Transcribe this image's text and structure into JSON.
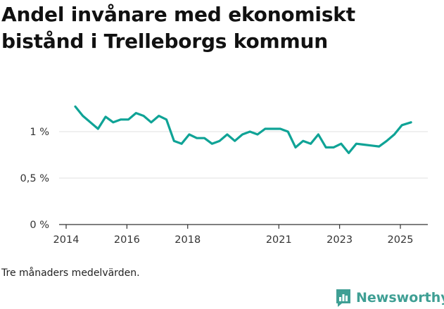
{
  "title": "Andel invånare med ekonomiskt bistånd i Trelleborgs kommun",
  "caption": "Tre månaders medelvärden.",
  "brand": {
    "name": "Newsworthy",
    "icon": "newsworthy-chart-logo-icon",
    "color": "#3f9f94"
  },
  "colors": {
    "line": "#0fa396",
    "grid": "#e2e2e2",
    "axis": "#333333"
  },
  "chart_data": {
    "type": "line",
    "title": "Andel invånare med ekonomiskt bistånd i Trelleborgs kommun",
    "xlabel": "",
    "ylabel": "",
    "xlim": [
      2014.0,
      2025.6
    ],
    "ylim": [
      0,
      1.3
    ],
    "x_ticks": [
      {
        "value": 2014,
        "label": "2014"
      },
      {
        "value": 2016,
        "label": "2016"
      },
      {
        "value": 2018,
        "label": "2018"
      },
      {
        "value": 2021,
        "label": "2021"
      },
      {
        "value": 2023,
        "label": "2023"
      },
      {
        "value": 2025,
        "label": "2025"
      }
    ],
    "y_ticks": [
      {
        "value": 0,
        "label": "0 %"
      },
      {
        "value": 0.5,
        "label": "0,5 %"
      },
      {
        "value": 1,
        "label": "1 %"
      }
    ],
    "grid": true,
    "legend": "none",
    "series": [
      {
        "color": "#0fa396",
        "x": [
          2014.3,
          2014.55,
          2014.8,
          2015.05,
          2015.3,
          2015.55,
          2015.8,
          2016.05,
          2016.3,
          2016.55,
          2016.8,
          2017.05,
          2017.3,
          2017.55,
          2017.8,
          2018.05,
          2018.3,
          2018.55,
          2018.8,
          2019.05,
          2019.3,
          2019.55,
          2019.8,
          2020.05,
          2020.3,
          2020.55,
          2020.8,
          2021.05,
          2021.3,
          2021.55,
          2021.8,
          2022.05,
          2022.3,
          2022.55,
          2022.8,
          2023.05,
          2023.3,
          2023.55,
          2023.8,
          2024.05,
          2024.3,
          2024.55,
          2024.8,
          2025.05,
          2025.35
        ],
        "y": [
          1.27,
          1.17,
          1.1,
          1.03,
          1.16,
          1.1,
          1.13,
          1.13,
          1.2,
          1.17,
          1.1,
          1.17,
          1.13,
          0.9,
          0.87,
          0.97,
          0.93,
          0.93,
          0.87,
          0.9,
          0.97,
          0.9,
          0.97,
          1.0,
          0.97,
          1.03,
          1.03,
          1.03,
          1.0,
          0.83,
          0.9,
          0.87,
          0.97,
          0.83,
          0.83,
          0.87,
          0.77,
          0.87,
          0.86,
          0.85,
          0.84,
          0.9,
          0.97,
          1.07,
          1.1
        ]
      }
    ]
  }
}
